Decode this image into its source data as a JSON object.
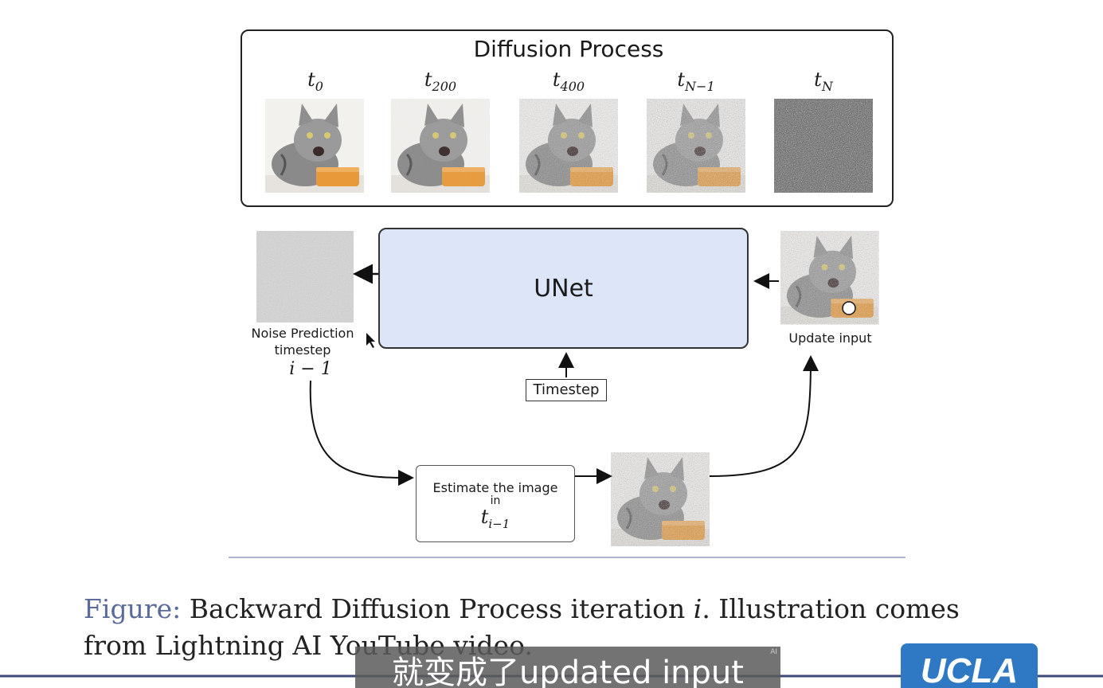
{
  "diagram": {
    "title": "Diffusion Process",
    "steps": [
      {
        "base": "t",
        "sub": "0",
        "noise": 0.0
      },
      {
        "base": "t",
        "sub": "200",
        "noise": 0.1
      },
      {
        "base": "t",
        "sub": "400",
        "noise": 0.55
      },
      {
        "base": "t",
        "sub": "N−1",
        "noise": 0.75
      },
      {
        "base": "t",
        "sub": "N",
        "noise": 1.0
      }
    ],
    "unet_label": "UNet",
    "noise_prediction_label": "Noise Prediction",
    "timestep_label": "timestep",
    "timestep_expr": "i − 1",
    "update_input_label": "Update input",
    "timestep_box": "Timestep",
    "estimate_line1": "Estimate the image",
    "estimate_line2": "in",
    "estimate_math_base": "t",
    "estimate_math_sub": "i−1"
  },
  "caption": {
    "prefix": "Figure:",
    "text_a": "Backward Diffusion Process iteration",
    "math_i": "i",
    "text_b": ". Illustration comes",
    "line2": "from Lightning AI YouTube video."
  },
  "subtitle": "就变成了updated input",
  "subtitle_badge": "AI",
  "logo": "UCLA",
  "colors": {
    "unet_fill": "#dde6f8",
    "logo_bg": "#2f78c4",
    "figure_prefix": "#5a6a9a"
  }
}
